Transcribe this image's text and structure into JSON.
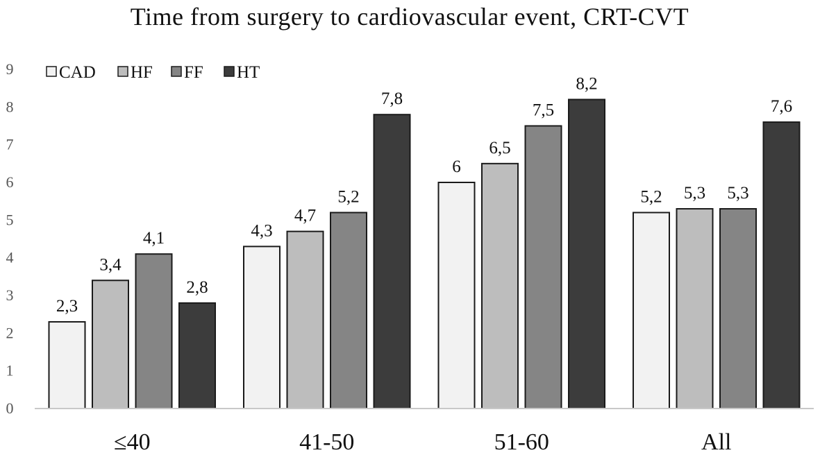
{
  "chart_data": {
    "type": "bar",
    "title": "Time from surgery to cardiovascular event, CRT-CVT",
    "xlabel": "",
    "ylabel": "",
    "ylim": [
      0,
      9
    ],
    "yticks": [
      "0",
      "1",
      "2",
      "3",
      "4",
      "5",
      "6",
      "7",
      "8",
      "9"
    ],
    "categories": [
      "≤40",
      "41-50",
      "51-60",
      "All"
    ],
    "legend_position": "top-left",
    "grid": false,
    "series": [
      {
        "name": "CAD",
        "color": "#f2f2f2",
        "values": [
          2.3,
          4.3,
          6,
          5.2
        ],
        "labels": [
          "2,3",
          "4,3",
          "6",
          "5,2"
        ]
      },
      {
        "name": "HF",
        "color": "#bdbdbd",
        "values": [
          3.4,
          4.7,
          6.5,
          5.3
        ],
        "labels": [
          "3,4",
          "4,7",
          "6,5",
          "5,3"
        ]
      },
      {
        "name": "FF",
        "color": "#858585",
        "values": [
          4.1,
          5.2,
          7.5,
          5.3
        ],
        "labels": [
          "4,1",
          "5,2",
          "7,5",
          "5,3"
        ]
      },
      {
        "name": "HT",
        "color": "#3c3c3c",
        "values": [
          2.8,
          7.8,
          8.2,
          7.6
        ],
        "labels": [
          "2,8",
          "7,8",
          "8,2",
          "7,6"
        ]
      }
    ]
  }
}
